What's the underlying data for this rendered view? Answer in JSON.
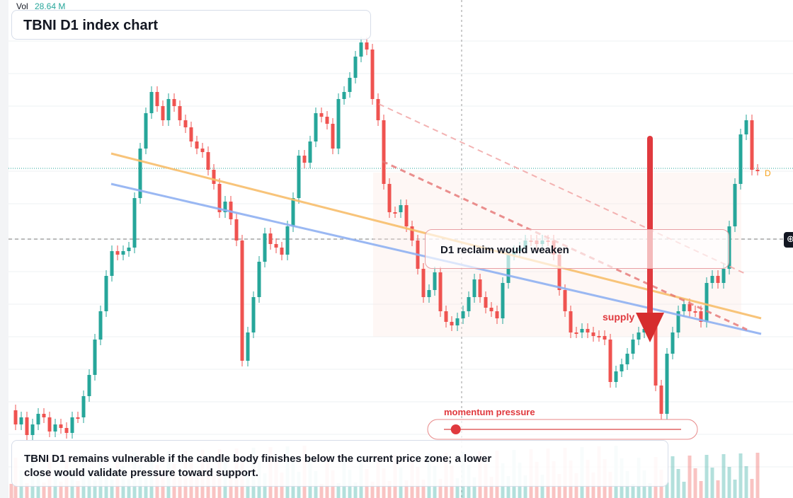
{
  "chart_data": {
    "type": "candlestick",
    "title": "TBNI D1 index chart",
    "volume": {
      "label": "Vol",
      "value": "28.64 M"
    },
    "candles": [],
    "trendlines": [
      {
        "name": "",
        "color": "#f7be6c"
      },
      {
        "name": "",
        "color": "#8fb0f2"
      }
    ],
    "annotations": {
      "callout": "D1 reclaim would weaken",
      "supply_label": "supply",
      "momentum_label": "momentum pressure",
      "momentum_level": 0.05,
      "summary": "TBNI D1 remains vulnerable if the candle body finishes below the current price zone; a lower close would validate pressure toward support."
    },
    "timeframe_badge": "D",
    "colors": {
      "up": "#26a69a",
      "down": "#ef5350",
      "accent": "#e0393e"
    }
  }
}
